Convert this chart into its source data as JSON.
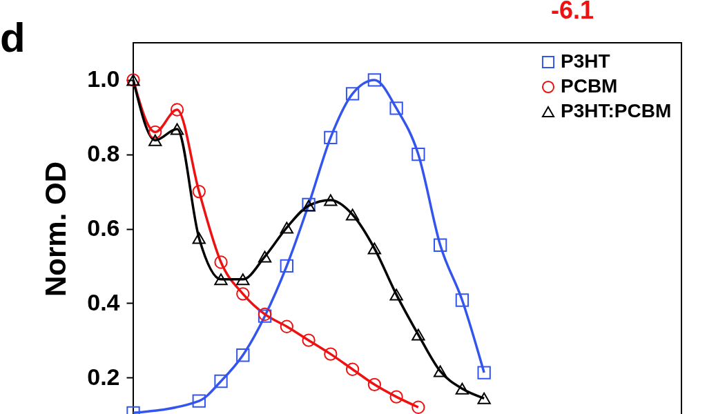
{
  "chart_data": {
    "type": "line",
    "ylabel": "Norm. OD",
    "annotations": [
      "d",
      "-6.1"
    ],
    "categories": [
      null,
      null,
      null,
      null,
      null,
      null,
      null,
      null,
      null,
      null,
      null,
      null,
      null,
      null,
      null,
      null,
      null,
      null,
      null,
      null,
      null,
      null,
      null,
      null,
      null,
      null
    ],
    "series": [
      {
        "name": "P3HT",
        "color": "#3355ee",
        "marker": "square",
        "values": [
          0.105,
          null,
          null,
          0.137,
          0.19,
          0.26,
          0.365,
          0.5,
          0.665,
          0.845,
          0.963,
          1.0,
          0.924,
          0.8,
          0.556,
          0.408,
          0.213,
          null,
          null,
          null,
          null,
          null,
          null,
          null,
          null,
          null
        ]
      },
      {
        "name": "PCBM",
        "color": "#ee1111",
        "marker": "circle",
        "values": [
          1.0,
          0.86,
          0.92,
          0.7,
          0.51,
          0.425,
          0.37,
          0.337,
          0.3,
          0.263,
          0.222,
          0.181,
          0.148,
          0.12,
          null,
          null,
          null,
          null,
          null,
          null,
          null,
          null,
          null,
          null,
          null,
          null
        ]
      },
      {
        "name": "P3HT:PCBM",
        "color": "#000000",
        "marker": "triangle",
        "values": [
          1.0,
          0.838,
          0.868,
          0.575,
          0.464,
          0.464,
          0.525,
          0.603,
          0.662,
          0.677,
          0.638,
          0.547,
          0.423,
          0.315,
          0.217,
          0.17,
          0.144,
          null,
          null,
          null,
          null,
          null,
          null,
          null,
          null,
          null
        ]
      }
    ],
    "ylim": [
      0.1,
      1.1
    ],
    "yticks": [
      0.2,
      0.4,
      0.6,
      0.8,
      {
        "value": 1,
        "label": "1.0"
      }
    ],
    "tick_labels": "y",
    "grid": false,
    "legend": "top right"
  }
}
